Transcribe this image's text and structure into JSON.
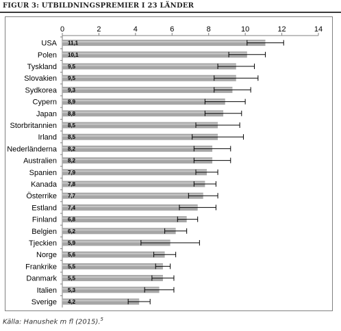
{
  "figure": {
    "title": "FIGUR 3: UTBILDNINGSPREMIER I 23 LÄNDER",
    "source": "Källa: Hanushek m fl (2015).",
    "source_footnote": "5"
  },
  "colors": {
    "bar": "#a6a6a6",
    "bar_highlight": "#c8c8c8",
    "error_bar": "#000000",
    "axis": "#7f7f7f",
    "text": "#000000"
  },
  "chart_data": {
    "type": "bar",
    "orientation": "horizontal",
    "title": "",
    "xlabel": "",
    "ylabel": "",
    "xlim": [
      0,
      14
    ],
    "xticks": [
      0,
      2,
      4,
      6,
      8,
      10,
      12,
      14
    ],
    "x_axis_position": "top",
    "grid": false,
    "legend": "none",
    "categories": [
      "USA",
      "Polen",
      "Tyskland",
      "Slovakien",
      "Sydkorea",
      "Cypern",
      "Japan",
      "Storbritannien",
      "Irland",
      "Nederländerna",
      "Australien",
      "Spanien",
      "Kanada",
      "Österrike",
      "Estland",
      "Finland",
      "Belgien",
      "Tjeckien",
      "Norge",
      "Frankrike",
      "Danmark",
      "Italien",
      "Sverige"
    ],
    "value_labels": [
      "11,1",
      "10,1",
      "9,5",
      "9,5",
      "9,3",
      "8,9",
      "8,8",
      "8,5",
      "8,5",
      "8,2",
      "8,2",
      "7,9",
      "7,8",
      "7,7",
      "7,4",
      "6,8",
      "6,2",
      "5,9",
      "5,6",
      "5,5",
      "5,5",
      "5,3",
      "4,2"
    ],
    "values": [
      11.1,
      10.1,
      9.5,
      9.5,
      9.3,
      8.9,
      8.8,
      8.5,
      8.5,
      8.2,
      8.2,
      7.9,
      7.8,
      7.7,
      7.4,
      6.8,
      6.2,
      5.9,
      5.6,
      5.5,
      5.5,
      5.3,
      4.2
    ],
    "error_low": [
      10.1,
      9.1,
      8.5,
      8.3,
      8.3,
      7.8,
      7.8,
      7.3,
      7.1,
      7.2,
      7.2,
      7.3,
      7.2,
      6.9,
      6.4,
      6.3,
      5.6,
      4.3,
      5.0,
      5.1,
      4.9,
      4.5,
      3.6
    ],
    "error_high": [
      12.1,
      11.1,
      10.5,
      10.7,
      10.3,
      10.0,
      9.8,
      9.7,
      9.9,
      9.2,
      9.2,
      8.5,
      8.4,
      8.5,
      8.4,
      7.4,
      6.8,
      7.5,
      6.2,
      5.9,
      6.1,
      6.1,
      4.8
    ]
  }
}
